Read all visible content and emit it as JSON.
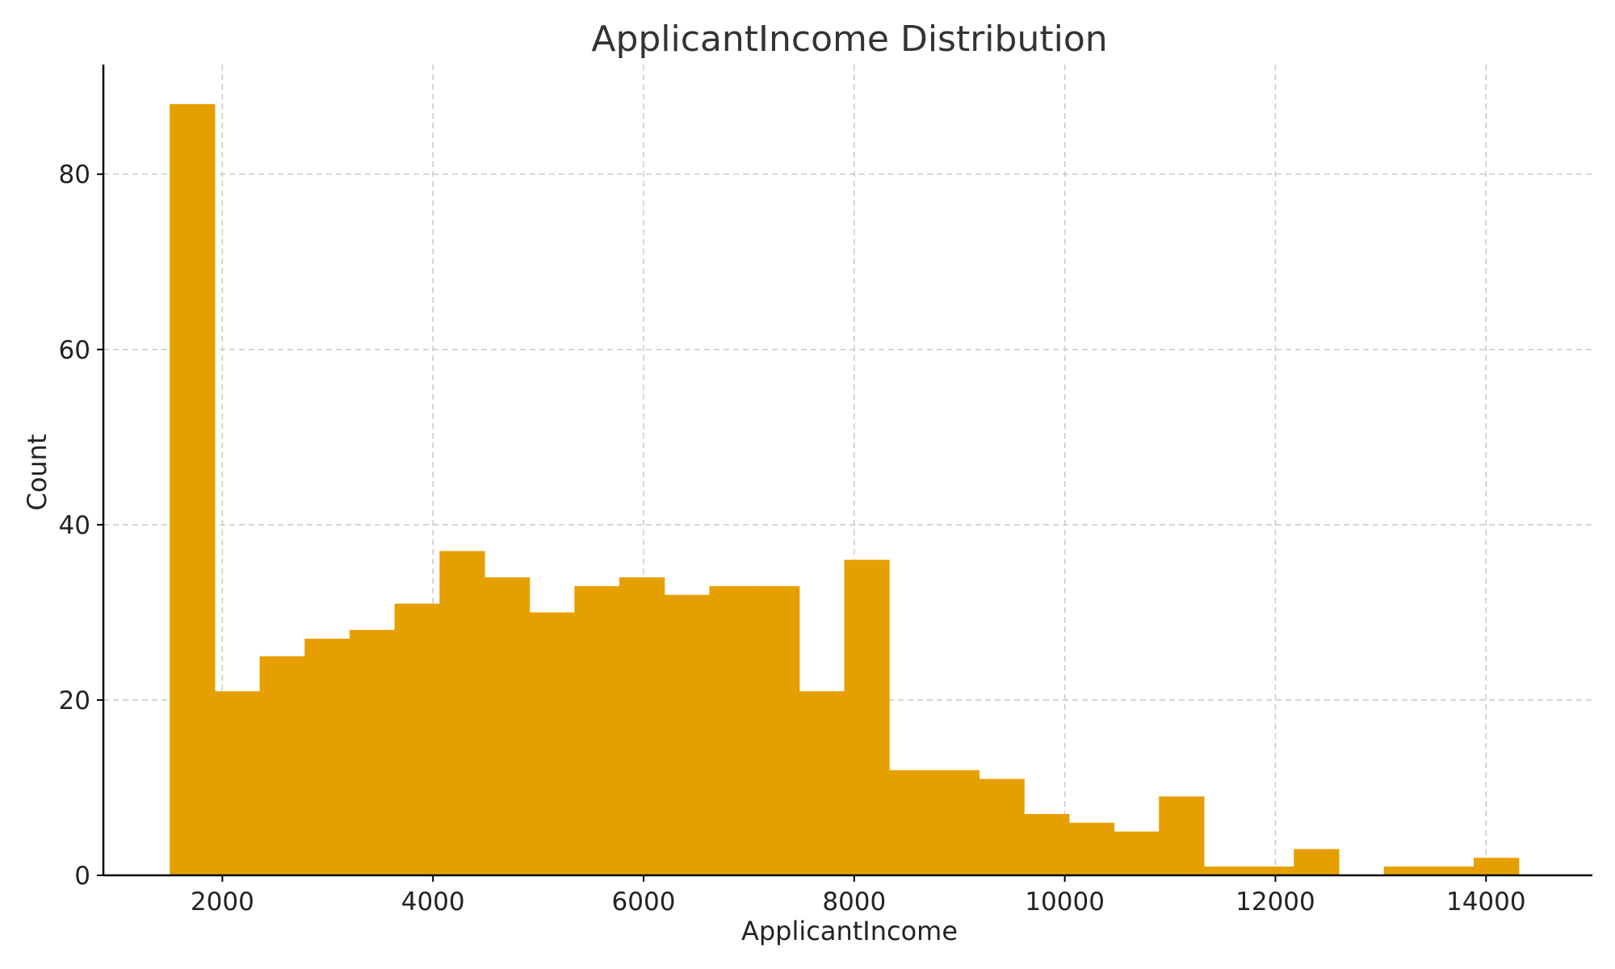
{
  "chart_data": {
    "type": "bar",
    "title": "ApplicantIncome Distribution",
    "xlabel": "ApplicantIncome",
    "ylabel": "Count",
    "x_ticks": [
      2000,
      4000,
      6000,
      8000,
      10000,
      12000,
      14000
    ],
    "y_ticks": [
      0,
      20,
      40,
      60,
      80
    ],
    "xlim": [
      870,
      15010
    ],
    "ylim": [
      0,
      92.5
    ],
    "grid": true,
    "bar_color": "#E69F00",
    "bins": [
      {
        "start": 1500,
        "end": 1927,
        "count": 88
      },
      {
        "start": 1927,
        "end": 2354,
        "count": 21
      },
      {
        "start": 2354,
        "end": 2781,
        "count": 25
      },
      {
        "start": 2781,
        "end": 3208,
        "count": 27
      },
      {
        "start": 3208,
        "end": 3635,
        "count": 28
      },
      {
        "start": 3635,
        "end": 4062,
        "count": 31
      },
      {
        "start": 4062,
        "end": 4489,
        "count": 37
      },
      {
        "start": 4489,
        "end": 4916,
        "count": 34
      },
      {
        "start": 4916,
        "end": 5343,
        "count": 30
      },
      {
        "start": 5343,
        "end": 5770,
        "count": 33
      },
      {
        "start": 5770,
        "end": 6197,
        "count": 34
      },
      {
        "start": 6197,
        "end": 6624,
        "count": 32
      },
      {
        "start": 6624,
        "end": 7051,
        "count": 33
      },
      {
        "start": 7051,
        "end": 7478,
        "count": 33
      },
      {
        "start": 7478,
        "end": 7905,
        "count": 21
      },
      {
        "start": 7905,
        "end": 8332,
        "count": 36
      },
      {
        "start": 8332,
        "end": 8759,
        "count": 12
      },
      {
        "start": 8759,
        "end": 9186,
        "count": 12
      },
      {
        "start": 9186,
        "end": 9613,
        "count": 11
      },
      {
        "start": 9613,
        "end": 10040,
        "count": 7
      },
      {
        "start": 10040,
        "end": 10467,
        "count": 6
      },
      {
        "start": 10467,
        "end": 10894,
        "count": 5
      },
      {
        "start": 10894,
        "end": 11321,
        "count": 9
      },
      {
        "start": 11321,
        "end": 11748,
        "count": 1
      },
      {
        "start": 11748,
        "end": 12175,
        "count": 1
      },
      {
        "start": 12175,
        "end": 12602,
        "count": 3
      },
      {
        "start": 12602,
        "end": 13029,
        "count": 0
      },
      {
        "start": 13029,
        "end": 13456,
        "count": 1
      },
      {
        "start": 13456,
        "end": 13883,
        "count": 1
      },
      {
        "start": 13883,
        "end": 14310,
        "count": 2
      }
    ]
  }
}
